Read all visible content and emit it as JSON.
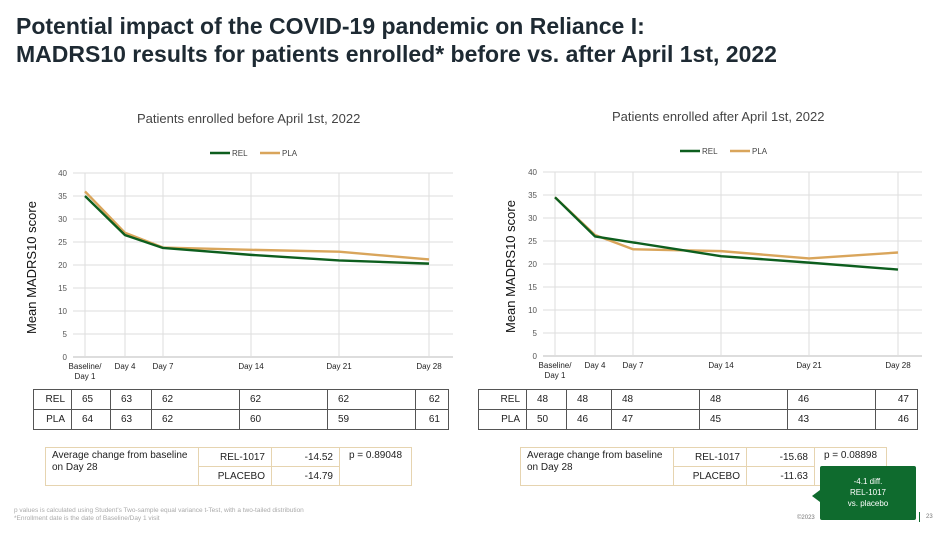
{
  "title": {
    "line1": "Potential impact of the COVID-19 pandemic on Reliance I:",
    "line2": "MADRS10 results for patients enrolled* before vs. after April 1st, 2022"
  },
  "colors": {
    "rel": "#0d5e1e",
    "pla": "#d9a55b",
    "grid": "#dddddd",
    "callout": "#0f6b2e"
  },
  "chart_data": [
    {
      "type": "line",
      "title": "Patients enrolled before April 1st, 2022",
      "ylabel": "Mean MADRS10 score",
      "xlabel": "",
      "categories": [
        "Baseline/\nDay 1",
        "Day 4",
        "Day 7",
        "Day 14",
        "Day 21",
        "Day 28"
      ],
      "x_days": [
        1,
        4,
        7,
        14,
        21,
        28
      ],
      "ylim": [
        0,
        40
      ],
      "yticks": [
        0,
        5,
        10,
        15,
        20,
        25,
        30,
        35,
        40
      ],
      "grid": true,
      "legend": "top-center",
      "series": [
        {
          "name": "REL",
          "values": [
            35.0,
            26.5,
            23.7,
            22.2,
            21.0,
            20.3
          ]
        },
        {
          "name": "PLA",
          "values": [
            36.0,
            27.0,
            23.8,
            23.3,
            22.9,
            21.2
          ]
        }
      ]
    },
    {
      "type": "line",
      "title": "Patients enrolled after April 1st, 2022",
      "ylabel": "Mean MADRS10 score",
      "xlabel": "",
      "categories": [
        "Baseline/\nDay 1",
        "Day 4",
        "Day 7",
        "Day 14",
        "Day 21",
        "Day 28"
      ],
      "x_days": [
        1,
        4,
        7,
        14,
        21,
        28
      ],
      "ylim": [
        0,
        40
      ],
      "yticks": [
        0,
        5,
        10,
        15,
        20,
        25,
        30,
        35,
        40
      ],
      "grid": true,
      "legend": "top-center",
      "series": [
        {
          "name": "REL",
          "values": [
            34.5,
            26.0,
            24.7,
            21.7,
            20.3,
            18.8
          ]
        },
        {
          "name": "PLA",
          "values": [
            34.5,
            26.3,
            23.2,
            22.8,
            21.2,
            22.5
          ]
        }
      ]
    }
  ],
  "left": {
    "counts": [
      {
        "label": "REL",
        "values": [
          "65",
          "63",
          "62",
          "62",
          "62",
          "62"
        ]
      },
      {
        "label": "PLA",
        "values": [
          "64",
          "63",
          "62",
          "60",
          "59",
          "61"
        ]
      }
    ],
    "avg": {
      "label": "Average change from baseline on Day 28",
      "rows": [
        {
          "arm": "REL-1017",
          "value": "-14.52"
        },
        {
          "arm": "PLACEBO",
          "value": "-14.79"
        }
      ],
      "p": "p = 0.89048"
    }
  },
  "right": {
    "counts": [
      {
        "label": "REL",
        "values": [
          "48",
          "48",
          "48",
          "48",
          "46",
          "47"
        ]
      },
      {
        "label": "PLA",
        "values": [
          "50",
          "46",
          "47",
          "45",
          "43",
          "46"
        ]
      }
    ],
    "avg": {
      "label": "Average change from baseline on Day 28",
      "rows": [
        {
          "arm": "REL-1017",
          "value": "-15.68"
        },
        {
          "arm": "PLACEBO",
          "value": "-11.63"
        }
      ],
      "p": "p = 0.08898"
    }
  },
  "callout": {
    "line1": "-4.1 diff.",
    "line2": "REL-1017",
    "line3": "vs. placebo"
  },
  "footnote": {
    "line1": "p values is calculated using Student's Two-sample equal variance t-Test, with a two-tailed distribution",
    "line2": "*Enrollment date is the date of Baseline/Day 1 visit"
  },
  "footer": {
    "copyright": "©2023",
    "page": "23"
  }
}
